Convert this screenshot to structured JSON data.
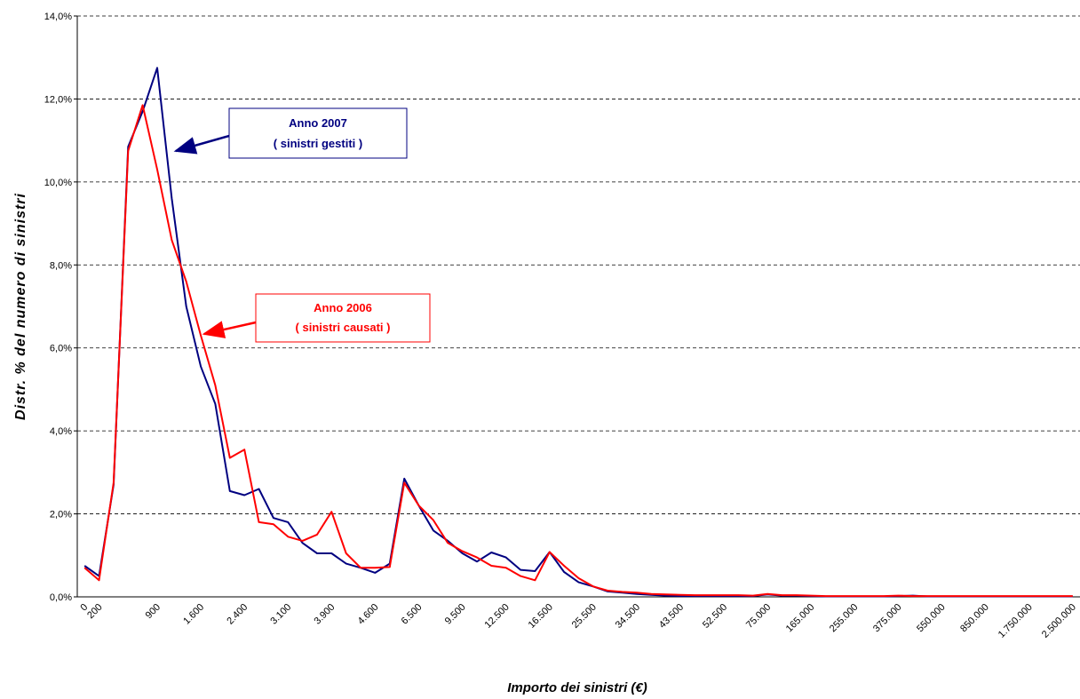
{
  "chart_data": {
    "type": "line",
    "xlabel": "Importo dei sinistri (€)",
    "ylabel": "Distr. % del numero di sinistri",
    "categories": [
      "0",
      "200",
      null,
      null,
      null,
      "900",
      null,
      null,
      "1.600",
      null,
      null,
      "2.400",
      null,
      null,
      "3.100",
      null,
      null,
      "3.900",
      null,
      null,
      "4.600",
      null,
      null,
      "6.500",
      null,
      null,
      "9.500",
      null,
      null,
      "12.500",
      null,
      null,
      "16.500",
      null,
      null,
      "25.500",
      null,
      null,
      "34.500",
      null,
      null,
      "43.500",
      null,
      null,
      "52.500",
      null,
      null,
      "75.000",
      null,
      null,
      "165.000",
      null,
      null,
      "255.000",
      null,
      null,
      "375.000",
      null,
      null,
      "550.000",
      null,
      null,
      "850.000",
      null,
      null,
      "1.750.000",
      null,
      null,
      "2.500.000"
    ],
    "series": [
      {
        "name": "Anno 2007",
        "color": "#000080",
        "values": [
          0.75,
          0.5,
          2.7,
          10.85,
          11.7,
          12.75,
          9.6,
          7.0,
          5.55,
          4.65,
          2.55,
          2.45,
          2.6,
          1.9,
          1.8,
          1.3,
          1.05,
          1.05,
          0.8,
          0.7,
          0.58,
          0.8,
          2.85,
          2.2,
          1.6,
          1.35,
          1.05,
          0.85,
          1.07,
          0.95,
          0.65,
          0.62,
          1.08,
          0.6,
          0.35,
          0.25,
          0.13,
          0.1,
          0.07,
          0.05,
          0.03,
          0.02,
          0.02,
          0.02,
          0.02,
          0.02,
          0.02,
          0.06,
          0.03,
          0.03,
          0.02,
          0.01,
          0.01,
          0.01,
          0.01,
          0.01,
          0.02,
          0.03,
          0.01,
          0.01,
          0.01,
          0.01,
          0.01,
          0.01,
          0.01,
          0.01,
          0.01,
          0.01,
          0.01
        ]
      },
      {
        "name": "Anno 2006",
        "color": "#ff0000",
        "values": [
          0.7,
          0.4,
          2.75,
          10.75,
          11.85,
          10.3,
          8.6,
          7.6,
          6.3,
          5.1,
          3.35,
          3.55,
          1.8,
          1.75,
          1.45,
          1.35,
          1.5,
          2.05,
          1.05,
          0.7,
          0.7,
          0.72,
          2.75,
          2.2,
          1.85,
          1.3,
          1.1,
          0.95,
          0.75,
          0.7,
          0.5,
          0.4,
          1.08,
          0.75,
          0.45,
          0.25,
          0.15,
          0.12,
          0.1,
          0.07,
          0.06,
          0.05,
          0.04,
          0.04,
          0.04,
          0.04,
          0.03,
          0.07,
          0.04,
          0.04,
          0.03,
          0.02,
          0.02,
          0.02,
          0.02,
          0.02,
          0.03,
          0.02,
          0.02,
          0.02,
          0.02,
          0.02,
          0.02,
          0.02,
          0.02,
          0.02,
          0.02,
          0.02,
          0.02
        ]
      }
    ],
    "annotations": [
      {
        "lines": [
          "Anno 2007",
          "( sinistri gestiti )"
        ],
        "color": "#000080"
      },
      {
        "lines": [
          "Anno 2006",
          "( sinistri causati )"
        ],
        "color": "#ff0000"
      }
    ],
    "ylim": [
      0,
      14
    ],
    "yticks": [
      {
        "value": 0,
        "label": "0,0%"
      },
      {
        "value": 2,
        "label": "2,0%"
      },
      {
        "value": 4,
        "label": "4,0%"
      },
      {
        "value": 6,
        "label": "6,0%"
      },
      {
        "value": 8,
        "label": "8,0%"
      },
      {
        "value": 10,
        "label": "10,0%"
      },
      {
        "value": 12,
        "label": "12,0%"
      },
      {
        "value": 14,
        "label": "14,0%"
      }
    ],
    "grid": true
  }
}
